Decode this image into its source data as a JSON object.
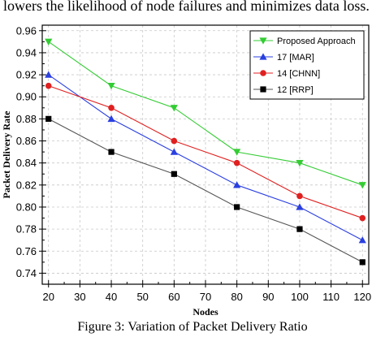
{
  "page": {
    "top_text": "lowers the likelihood of node failures and minimizes data loss.",
    "caption": "Figure 3: Variation of Packet Delivery Ratio"
  },
  "chart_data": {
    "type": "line",
    "xlabel": "Nodes",
    "ylabel": "Packet Delivery Rate",
    "xlim": [
      18,
      122
    ],
    "ylim": [
      0.73,
      0.965
    ],
    "x_ticks": [
      20,
      30,
      40,
      50,
      60,
      70,
      80,
      90,
      100,
      110,
      120
    ],
    "y_ticks": [
      0.74,
      0.76,
      0.78,
      0.8,
      0.82,
      0.84,
      0.86,
      0.88,
      0.9,
      0.92,
      0.94,
      0.96
    ],
    "grid": true,
    "legend_position": "top-right",
    "x": [
      20,
      40,
      60,
      80,
      100,
      120
    ],
    "series": [
      {
        "name": "Proposed Approach",
        "values": [
          0.95,
          0.91,
          0.89,
          0.85,
          0.84,
          0.82
        ],
        "color": "#33cc33",
        "marker": "triangle-down"
      },
      {
        "name": "17 [MAR]",
        "values": [
          0.92,
          0.88,
          0.85,
          0.82,
          0.8,
          0.77
        ],
        "color": "#2a3fe0",
        "marker": "triangle-up"
      },
      {
        "name": "14 [CHNN]",
        "values": [
          0.91,
          0.89,
          0.86,
          0.84,
          0.81,
          0.79
        ],
        "color": "#e02020",
        "marker": "circle"
      },
      {
        "name": "12 [RRP]",
        "values": [
          0.88,
          0.85,
          0.83,
          0.8,
          0.78,
          0.75
        ],
        "color": "#000000",
        "line_color": "#555555",
        "marker": "square"
      }
    ]
  }
}
